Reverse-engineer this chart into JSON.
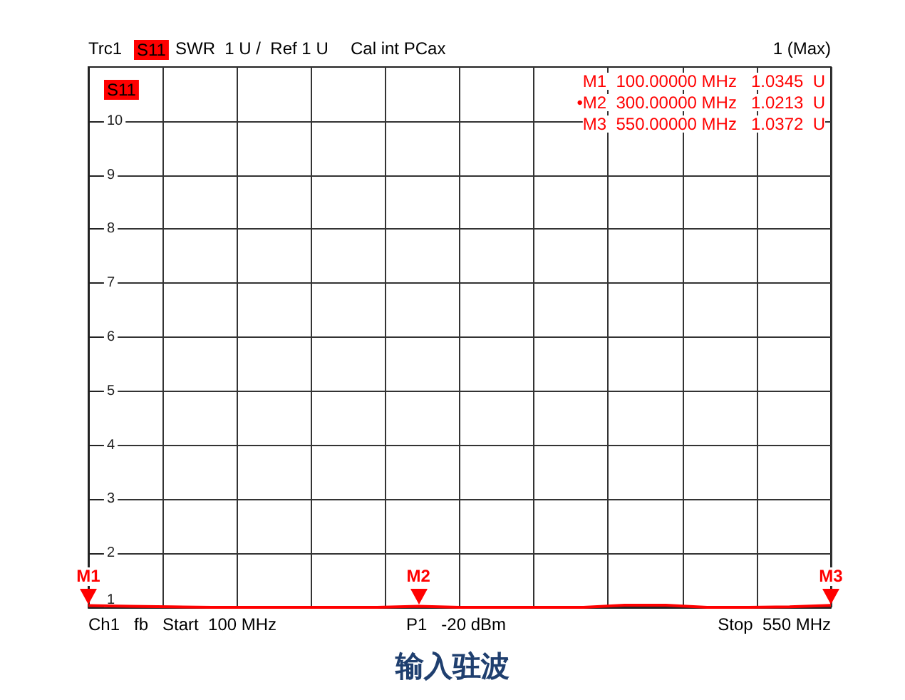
{
  "chart_data": {
    "type": "line",
    "title": "输入驻波",
    "categories": [
      null,
      null,
      null,
      null,
      null,
      null,
      null,
      null,
      null,
      null,
      null,
      null,
      null,
      null,
      null,
      null,
      null,
      null,
      null
    ],
    "series": [
      {
        "color": "#ff0000",
        "values": [
          1.0345,
          1.02,
          1.01,
          1.0,
          1.0,
          1.0,
          1.0,
          1.0,
          1.0213,
          1.0,
          1.0,
          1.0,
          1.0,
          1.04,
          1.04,
          1.0,
          1.0,
          1.01,
          1.0372
        ]
      }
    ],
    "ylim": [
      1,
      11
    ],
    "yticks": [
      1,
      2,
      3,
      4,
      5,
      6,
      7,
      8,
      9,
      10
    ],
    "tick_labels": "y",
    "grid": true,
    "marker": "none",
    "line_style": "solid",
    "annotations": [
      "Trc1",
      "S11",
      "SWR  1 U /  Ref 1 U",
      "Cal int PCax",
      "1 (Max)",
      "S11",
      "M1  100.00000 MHz   1.0345  U",
      "•M2  300.00000 MHz   1.0213  U",
      "M3  550.00000 MHz   1.0372  U",
      "Ch1   fb   Start  100 MHz",
      "P1   -20 dBm",
      "Stop  550 MHz",
      "M1",
      "M2",
      "M3"
    ]
  }
}
